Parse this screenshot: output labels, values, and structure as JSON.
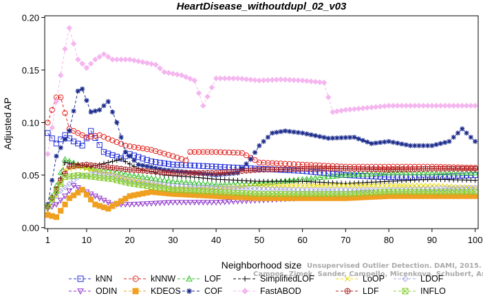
{
  "chart_data": {
    "type": "line",
    "title": "HeartDisease_withoutdupl_02_v03",
    "xlabel": "Neighborhood size",
    "ylabel": "Adjusted AP",
    "xlim": [
      1,
      100
    ],
    "ylim": [
      0.0,
      0.2
    ],
    "x_ticks": [
      1,
      10,
      20,
      30,
      40,
      50,
      60,
      70,
      80,
      90,
      100
    ],
    "y_ticks": [
      "0.00",
      "0.05",
      "0.10",
      "0.15",
      "0.20"
    ],
    "legend_position": "bottom",
    "x_step": 1,
    "watermark": [
      "Unsupervised Outlier Detection. DAMI, 2015.",
      "Campos, Zimek, Sander, Campello, Micenkova, Schubert, Assent, Houle"
    ],
    "series": [
      {
        "name": "kNN",
        "color": "#1f2bd6",
        "dash": "4,3",
        "marker": "square",
        "anchors": [
          [
            1,
            0.09
          ],
          [
            3,
            0.08
          ],
          [
            5,
            0.088
          ],
          [
            7,
            0.082
          ],
          [
            9,
            0.078
          ],
          [
            11,
            0.092
          ],
          [
            14,
            0.072
          ],
          [
            18,
            0.066
          ],
          [
            20,
            0.07
          ],
          [
            25,
            0.063
          ],
          [
            30,
            0.06
          ],
          [
            40,
            0.058
          ],
          [
            50,
            0.056
          ],
          [
            60,
            0.054
          ],
          [
            70,
            0.05
          ],
          [
            80,
            0.048
          ],
          [
            90,
            0.048
          ],
          [
            100,
            0.05
          ]
        ]
      },
      {
        "name": "kNNW",
        "color": "#e0201c",
        "dash": "4,3",
        "marker": "circle",
        "anchors": [
          [
            1,
            0.1
          ],
          [
            3,
            0.124
          ],
          [
            4,
            0.124
          ],
          [
            6,
            0.094
          ],
          [
            8,
            0.09
          ],
          [
            10,
            0.086
          ],
          [
            13,
            0.088
          ],
          [
            16,
            0.083
          ],
          [
            19,
            0.078
          ],
          [
            25,
            0.074
          ],
          [
            30,
            0.068
          ],
          [
            33,
            0.064
          ],
          [
            34,
            0.072
          ],
          [
            40,
            0.072
          ],
          [
            46,
            0.071
          ],
          [
            50,
            0.062
          ],
          [
            60,
            0.06
          ],
          [
            70,
            0.058
          ],
          [
            80,
            0.058
          ],
          [
            90,
            0.058
          ],
          [
            100,
            0.057
          ]
        ]
      },
      {
        "name": "LOF",
        "color": "#2bbf22",
        "dash": "4,3",
        "marker": "triangle-up",
        "anchors": [
          [
            1,
            0.02
          ],
          [
            3,
            0.04
          ],
          [
            5,
            0.065
          ],
          [
            8,
            0.06
          ],
          [
            12,
            0.055
          ],
          [
            16,
            0.054
          ],
          [
            20,
            0.05
          ],
          [
            30,
            0.044
          ],
          [
            40,
            0.041
          ],
          [
            50,
            0.042
          ],
          [
            60,
            0.046
          ],
          [
            70,
            0.05
          ],
          [
            80,
            0.052
          ],
          [
            90,
            0.052
          ],
          [
            100,
            0.052
          ]
        ]
      },
      {
        "name": "SimplifiedLOF",
        "color": "#000000",
        "dash": "4,3",
        "marker": "plus",
        "anchors": [
          [
            1,
            0.022
          ],
          [
            3,
            0.032
          ],
          [
            5,
            0.062
          ],
          [
            8,
            0.06
          ],
          [
            11,
            0.058
          ],
          [
            15,
            0.062
          ],
          [
            18,
            0.065
          ],
          [
            22,
            0.056
          ],
          [
            28,
            0.05
          ],
          [
            35,
            0.048
          ],
          [
            40,
            0.046
          ],
          [
            50,
            0.044
          ],
          [
            60,
            0.044
          ],
          [
            70,
            0.042
          ],
          [
            80,
            0.044
          ],
          [
            90,
            0.046
          ],
          [
            100,
            0.045
          ]
        ]
      },
      {
        "name": "LoOP",
        "color": "#e6d80e",
        "dash": "4,3",
        "marker": "x",
        "anchors": [
          [
            1,
            0.016
          ],
          [
            3,
            0.03
          ],
          [
            5,
            0.055
          ],
          [
            8,
            0.058
          ],
          [
            12,
            0.054
          ],
          [
            16,
            0.05
          ],
          [
            20,
            0.046
          ],
          [
            30,
            0.038
          ],
          [
            40,
            0.037
          ],
          [
            50,
            0.04
          ],
          [
            60,
            0.04
          ],
          [
            70,
            0.04
          ],
          [
            80,
            0.04
          ],
          [
            90,
            0.04
          ],
          [
            100,
            0.038
          ]
        ]
      },
      {
        "name": "LDOF",
        "color": "#a6a6e6",
        "dash": "4,3",
        "marker": "diamond",
        "anchors": [
          [
            1,
            0.02
          ],
          [
            4,
            0.035
          ],
          [
            8,
            0.048
          ],
          [
            12,
            0.052
          ],
          [
            16,
            0.05
          ],
          [
            20,
            0.045
          ],
          [
            30,
            0.04
          ],
          [
            40,
            0.038
          ],
          [
            50,
            0.037
          ],
          [
            60,
            0.036
          ],
          [
            70,
            0.036
          ],
          [
            80,
            0.036
          ],
          [
            90,
            0.037
          ],
          [
            100,
            0.038
          ]
        ]
      },
      {
        "name": "ODIN",
        "color": "#8a2ec9",
        "dash": "4,3",
        "marker": "triangle-down",
        "anchors": [
          [
            1,
            0.018
          ],
          [
            3,
            0.022
          ],
          [
            5,
            0.03
          ],
          [
            7,
            0.04
          ],
          [
            10,
            0.034
          ],
          [
            13,
            0.028
          ],
          [
            16,
            0.022
          ],
          [
            20,
            0.022
          ],
          [
            30,
            0.024
          ],
          [
            40,
            0.024
          ],
          [
            50,
            0.026
          ],
          [
            60,
            0.028
          ],
          [
            70,
            0.028
          ],
          [
            80,
            0.03
          ],
          [
            90,
            0.03
          ],
          [
            100,
            0.03
          ]
        ]
      },
      {
        "name": "KDEOS",
        "color": "#f0a020",
        "dash": "4,3",
        "marker": "square-filled",
        "anchors": [
          [
            1,
            0.012
          ],
          [
            3,
            0.01
          ],
          [
            6,
            0.028
          ],
          [
            9,
            0.036
          ],
          [
            12,
            0.022
          ],
          [
            15,
            0.018
          ],
          [
            20,
            0.03
          ],
          [
            25,
            0.034
          ],
          [
            30,
            0.032
          ],
          [
            40,
            0.03
          ],
          [
            50,
            0.028
          ],
          [
            60,
            0.028
          ],
          [
            70,
            0.028
          ],
          [
            80,
            0.03
          ],
          [
            90,
            0.03
          ],
          [
            100,
            0.03
          ]
        ]
      },
      {
        "name": "COF",
        "color": "#1a2a8c",
        "dash": "4,3",
        "marker": "star",
        "anchors": [
          [
            1,
            0.022
          ],
          [
            3,
            0.068
          ],
          [
            6,
            0.092
          ],
          [
            8,
            0.13
          ],
          [
            9,
            0.132
          ],
          [
            11,
            0.11
          ],
          [
            13,
            0.112
          ],
          [
            15,
            0.12
          ],
          [
            17,
            0.1
          ],
          [
            19,
            0.072
          ],
          [
            22,
            0.06
          ],
          [
            28,
            0.055
          ],
          [
            35,
            0.052
          ],
          [
            40,
            0.05
          ],
          [
            45,
            0.052
          ],
          [
            48,
            0.065
          ],
          [
            50,
            0.078
          ],
          [
            53,
            0.09
          ],
          [
            56,
            0.092
          ],
          [
            60,
            0.09
          ],
          [
            66,
            0.085
          ],
          [
            72,
            0.086
          ],
          [
            76,
            0.08
          ],
          [
            80,
            0.082
          ],
          [
            85,
            0.078
          ],
          [
            90,
            0.078
          ],
          [
            94,
            0.082
          ],
          [
            97,
            0.094
          ],
          [
            100,
            0.082
          ]
        ]
      },
      {
        "name": "FastABOD",
        "color": "#f5b6f0",
        "dash": "4,3",
        "marker": "diamond-filled",
        "anchors": [
          [
            1,
            0.07
          ],
          [
            3,
            0.12
          ],
          [
            5,
            0.17
          ],
          [
            6,
            0.19
          ],
          [
            8,
            0.16
          ],
          [
            10,
            0.152
          ],
          [
            12,
            0.16
          ],
          [
            14,
            0.165
          ],
          [
            16,
            0.16
          ],
          [
            20,
            0.16
          ],
          [
            26,
            0.155
          ],
          [
            28,
            0.148
          ],
          [
            32,
            0.145
          ],
          [
            35,
            0.14
          ],
          [
            37,
            0.116
          ],
          [
            40,
            0.142
          ],
          [
            45,
            0.142
          ],
          [
            50,
            0.14
          ],
          [
            55,
            0.141
          ],
          [
            60,
            0.14
          ],
          [
            65,
            0.138
          ],
          [
            67,
            0.11
          ],
          [
            70,
            0.112
          ],
          [
            75,
            0.114
          ],
          [
            80,
            0.116
          ],
          [
            90,
            0.116
          ],
          [
            100,
            0.116
          ]
        ]
      },
      {
        "name": "LDF",
        "color": "#a82020",
        "dash": "4,3",
        "marker": "circle-plus",
        "anchors": [
          [
            1,
            0.02
          ],
          [
            4,
            0.045
          ],
          [
            6,
            0.058
          ],
          [
            10,
            0.06
          ],
          [
            14,
            0.058
          ],
          [
            20,
            0.055
          ],
          [
            30,
            0.052
          ],
          [
            40,
            0.052
          ],
          [
            50,
            0.055
          ],
          [
            60,
            0.056
          ],
          [
            70,
            0.056
          ],
          [
            80,
            0.055
          ],
          [
            90,
            0.056
          ],
          [
            100,
            0.056
          ]
        ]
      },
      {
        "name": "INFLO",
        "color": "#88cc33",
        "dash": "4,3",
        "marker": "square-x",
        "anchors": [
          [
            1,
            0.02
          ],
          [
            3,
            0.035
          ],
          [
            5,
            0.048
          ],
          [
            8,
            0.05
          ],
          [
            12,
            0.048
          ],
          [
            16,
            0.046
          ],
          [
            20,
            0.042
          ],
          [
            30,
            0.036
          ],
          [
            40,
            0.034
          ],
          [
            50,
            0.032
          ],
          [
            60,
            0.032
          ],
          [
            70,
            0.032
          ],
          [
            80,
            0.034
          ],
          [
            90,
            0.034
          ],
          [
            100,
            0.034
          ]
        ]
      }
    ]
  }
}
